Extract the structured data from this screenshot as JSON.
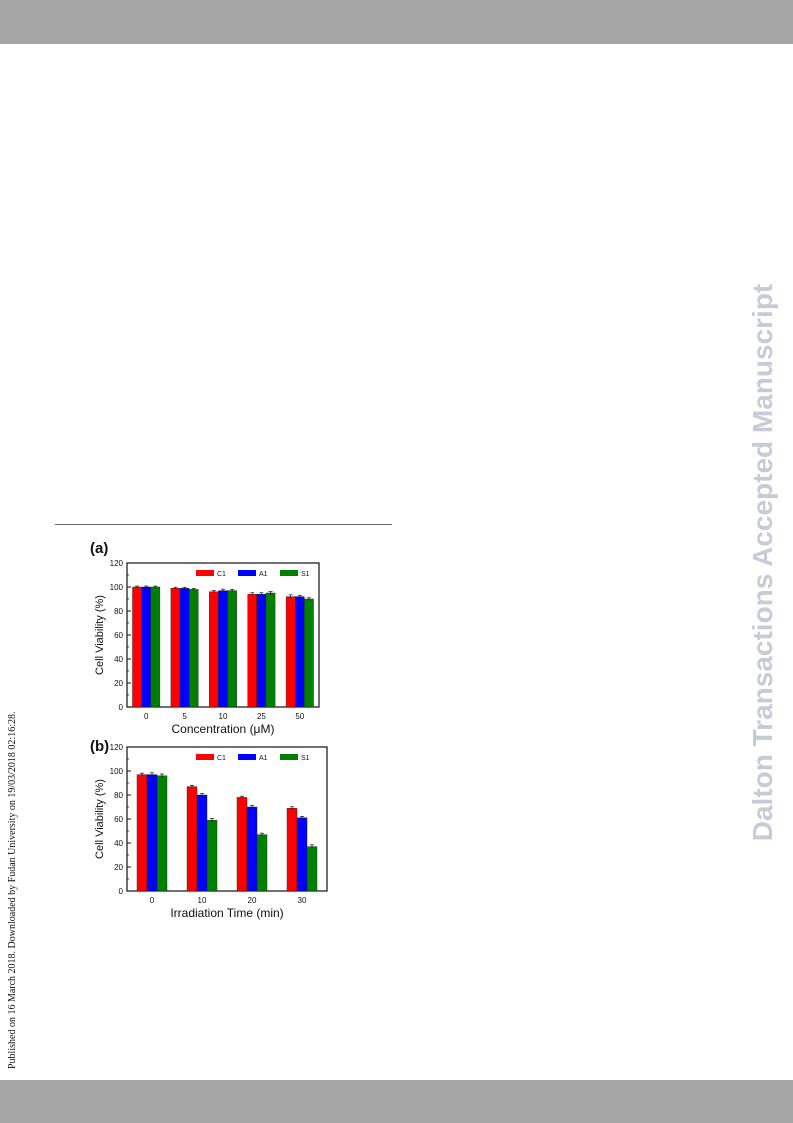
{
  "side_stamp": "Published on 16 March 2018. Downloaded by Fudan University on 19/03/2018 02:16:28.",
  "watermark": "Dalton Transactions Accepted Manuscript",
  "colors": {
    "C1": "#ff0000",
    "A1": "#0000ff",
    "S1": "#008000",
    "bars": "#a5a5a5"
  },
  "chart_data": [
    {
      "panel_label": "(a)",
      "type": "bar",
      "categories": [
        "0",
        "5",
        "10",
        "25",
        "50"
      ],
      "xlabel": "Concentration (μM)",
      "ylabel": "Cell Viability (%)",
      "ylim": [
        0,
        120
      ],
      "yticks": [
        "0",
        "20",
        "40",
        "60",
        "80",
        "100",
        "120"
      ],
      "legend_position": "top-right",
      "series": [
        {
          "name": "C1",
          "values": [
            100,
            99,
            96,
            94,
            92
          ],
          "errors": [
            0.8,
            0.8,
            1.0,
            1.2,
            1.5
          ]
        },
        {
          "name": "A1",
          "values": [
            100,
            99,
            97,
            94,
            92
          ],
          "errors": [
            0.8,
            0.8,
            1.2,
            1.2,
            1.0
          ]
        },
        {
          "name": "S1",
          "values": [
            100,
            98,
            97,
            95,
            90
          ],
          "errors": [
            0.8,
            0.8,
            1.0,
            1.2,
            1.0
          ]
        }
      ]
    },
    {
      "panel_label": "(b)",
      "type": "bar",
      "categories": [
        "0",
        "10",
        "20",
        "30"
      ],
      "xlabel": "Irradiation Time (min)",
      "ylabel": "Cell Viability (%)",
      "ylim": [
        0,
        120
      ],
      "yticks": [
        "0",
        "20",
        "40",
        "60",
        "80",
        "100",
        "120"
      ],
      "legend_position": "top-right",
      "series": [
        {
          "name": "C1",
          "values": [
            97,
            87,
            78,
            69
          ],
          "errors": [
            1.2,
            1.0,
            1.0,
            1.2
          ]
        },
        {
          "name": "A1",
          "values": [
            97,
            80,
            70,
            61
          ],
          "errors": [
            1.5,
            1.2,
            1.2,
            1.2
          ]
        },
        {
          "name": "S1",
          "values": [
            96,
            59,
            47,
            37
          ],
          "errors": [
            1.5,
            1.5,
            1.2,
            1.5
          ]
        }
      ]
    }
  ]
}
